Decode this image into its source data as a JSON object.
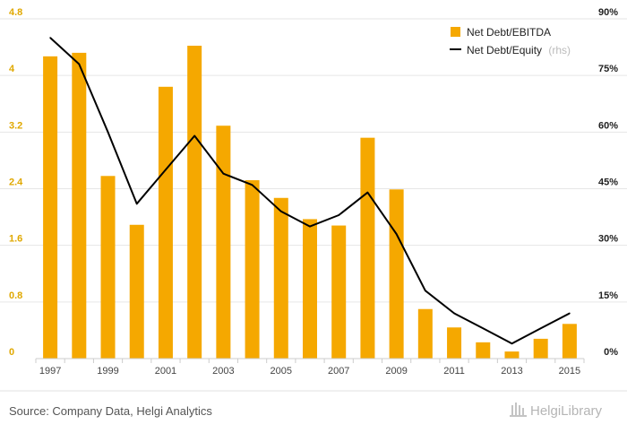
{
  "chart_data": {
    "type": "bar",
    "x": [
      1997,
      1998,
      1999,
      2000,
      2001,
      2002,
      2003,
      2004,
      2005,
      2006,
      2007,
      2008,
      2009,
      2010,
      2011,
      2012,
      2013,
      2014,
      2015
    ],
    "x_tick_labels": [
      "1997",
      "1999",
      "2001",
      "2003",
      "2005",
      "2007",
      "2009",
      "2011",
      "2013",
      "2015"
    ],
    "series": [
      {
        "name": "Net Debt/EBITDA",
        "kind": "bar",
        "axis": "left",
        "color": "#f5a800",
        "values": [
          4.27,
          4.32,
          2.58,
          1.89,
          3.84,
          4.42,
          3.29,
          2.52,
          2.27,
          1.97,
          1.88,
          3.12,
          2.39,
          0.7,
          0.44,
          0.23,
          0.1,
          0.28,
          0.49
        ]
      },
      {
        "name": "Net Debt/Equity",
        "name_suffix": "(rhs)",
        "kind": "line",
        "axis": "right",
        "color": "#000000",
        "values": [
          85,
          78,
          60,
          41,
          50,
          59,
          49,
          46,
          39,
          35,
          38,
          44,
          33,
          18,
          12,
          8,
          4,
          8,
          12
        ]
      }
    ],
    "ylim_left": [
      0,
      4.8
    ],
    "yticks_left": [
      "0",
      "0.8",
      "1.6",
      "2.4",
      "3.2",
      "4",
      "4.8"
    ],
    "ylim_right": [
      0,
      90
    ],
    "yticks_right": [
      "0%",
      "15%",
      "30%",
      "45%",
      "60%",
      "75%",
      "90%"
    ],
    "grid": true,
    "legend_position": "top-right"
  },
  "footer": {
    "source": "Source: Company Data, Helgi Analytics",
    "brand": "HelgiLibrary"
  },
  "colors": {
    "bar": "#f5a800",
    "line": "#000000",
    "grid": "#e6e6e6",
    "left_axis_text": "#e0a800"
  }
}
